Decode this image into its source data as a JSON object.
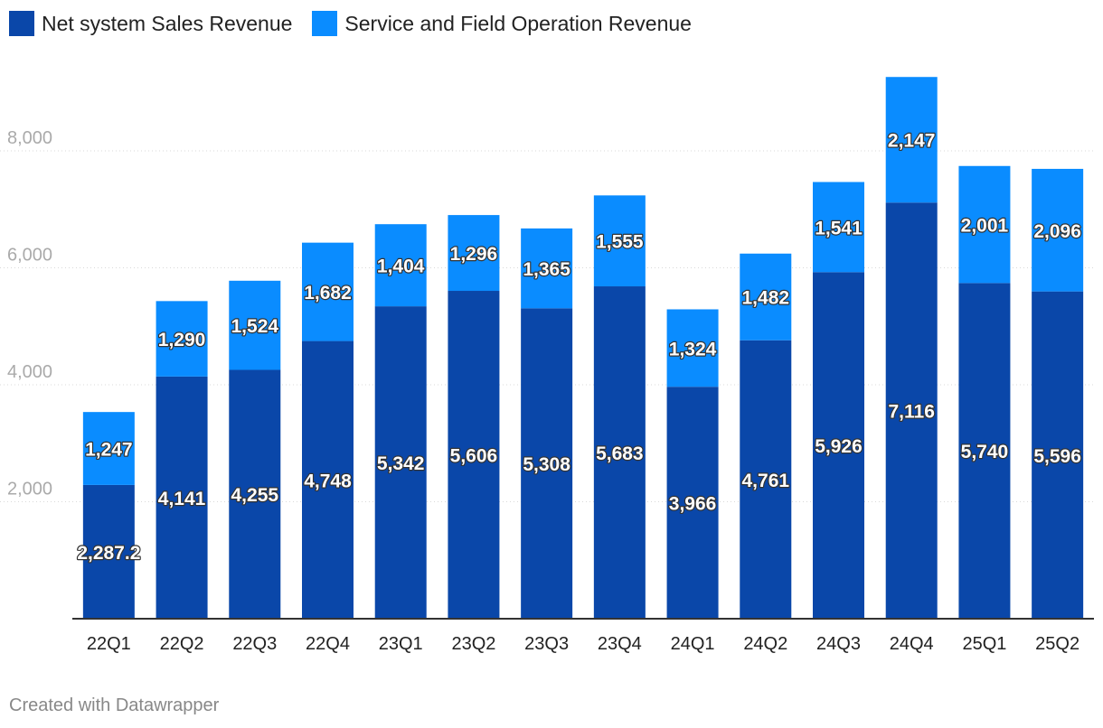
{
  "legend": {
    "series1_label": "Net system Sales Revenue",
    "series2_label": "Service and Field Operation Revenue"
  },
  "credit": "Created with Datawrapper",
  "colors": {
    "series1": "#0a47a9",
    "series2": "#0a8cff",
    "grid": "#d9d9d9",
    "axis": "#333333"
  },
  "chart_data": {
    "type": "bar",
    "stacked": true,
    "title": "",
    "xlabel": "",
    "ylabel": "",
    "ylim": [
      0,
      9500
    ],
    "yticks": [
      2000,
      4000,
      6000,
      8000
    ],
    "ytick_labels": [
      "2,000",
      "4,000",
      "6,000",
      "8,000"
    ],
    "grid": true,
    "legend_position": "top-left",
    "categories": [
      "22Q1",
      "22Q2",
      "22Q3",
      "22Q4",
      "23Q1",
      "23Q2",
      "23Q3",
      "23Q4",
      "24Q1",
      "24Q2",
      "24Q3",
      "24Q4",
      "25Q1",
      "25Q2"
    ],
    "series": [
      {
        "name": "Net system Sales Revenue",
        "values": [
          2287.2,
          4141,
          4255,
          4748,
          5342,
          5606,
          5308,
          5683,
          3966,
          4761,
          5926,
          7116,
          5740,
          5596
        ],
        "labels": [
          "2,287.2",
          "4,141",
          "4,255",
          "4,748",
          "5,342",
          "5,606",
          "5,308",
          "5,683",
          "3,966",
          "4,761",
          "5,926",
          "7,116",
          "5,740",
          "5,596"
        ]
      },
      {
        "name": "Service and Field Operation Revenue",
        "values": [
          1247,
          1290,
          1524,
          1682,
          1404,
          1296,
          1365,
          1555,
          1324,
          1482,
          1541,
          2147,
          2001,
          2096
        ],
        "labels": [
          "1,247",
          "1,290",
          "1,524",
          "1,682",
          "1,404",
          "1,296",
          "1,365",
          "1,555",
          "1,324",
          "1,482",
          "1,541",
          "2,147",
          "2,001",
          "2,096"
        ]
      }
    ]
  }
}
